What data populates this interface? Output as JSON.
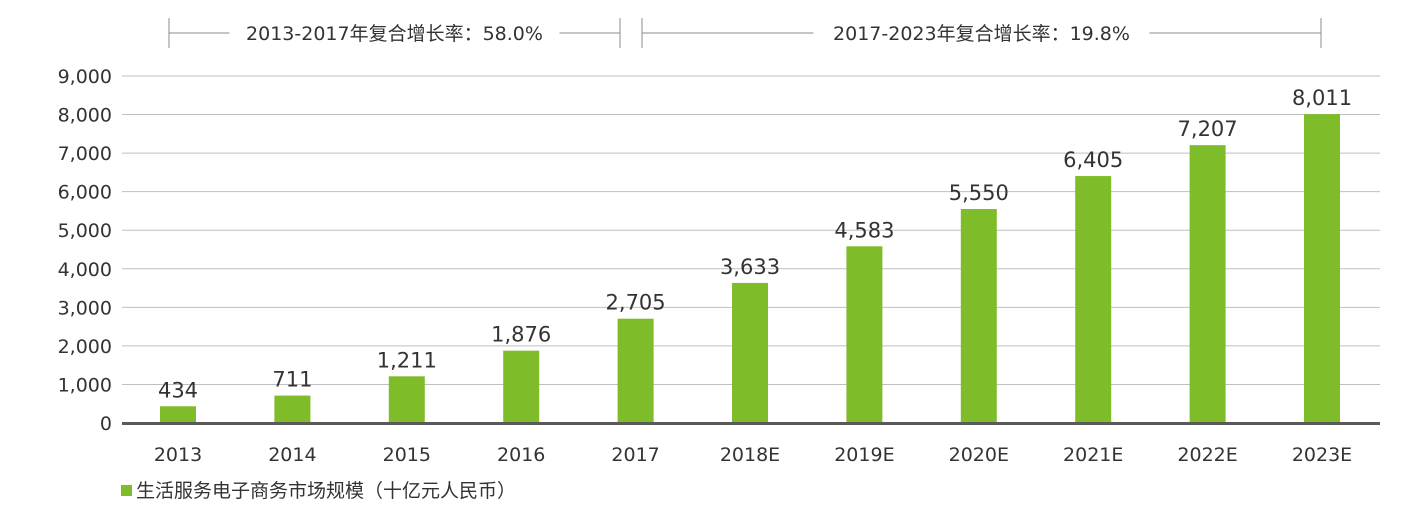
{
  "chart_data": {
    "type": "bar",
    "categories": [
      "2013",
      "2014",
      "2015",
      "2016",
      "2017",
      "2018E",
      "2019E",
      "2020E",
      "2021E",
      "2022E",
      "2023E"
    ],
    "series": [
      {
        "name": "生活服务电子商务市场规模（十亿元人民币）",
        "values": [
          434,
          711,
          1211,
          1876,
          2705,
          3633,
          4583,
          5550,
          6405,
          7207,
          8011
        ],
        "value_labels": [
          "434",
          "711",
          "1,211",
          "1,876",
          "2,705",
          "3,633",
          "4,583",
          "5,550",
          "6,405",
          "7,207",
          "8,011"
        ]
      }
    ],
    "ylim": [
      0,
      9000
    ],
    "y_ticks": [
      0,
      1000,
      2000,
      3000,
      4000,
      5000,
      6000,
      7000,
      8000,
      9000
    ],
    "y_tick_labels": [
      "0",
      "1,000",
      "2,000",
      "3,000",
      "4,000",
      "5,000",
      "6,000",
      "7,000",
      "8,000",
      "9,000"
    ],
    "grid": true,
    "legend_position": "bottom-left",
    "annotations": [
      {
        "text": "2013-2017年复合增长率：58.0%",
        "from_category": "2013",
        "to_category": "2017"
      },
      {
        "text": "2017-2023年复合增长率：19.8%",
        "from_category": "2017",
        "to_category": "2023E"
      }
    ],
    "colors": {
      "bar": "#7fbc29",
      "grid": "#bfbfbf",
      "axis": "#5a5a5a",
      "bracket": "#8c8c8c"
    }
  }
}
